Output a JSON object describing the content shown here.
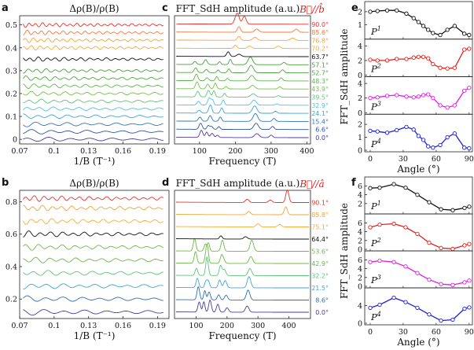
{
  "chart_data": {
    "type": "line",
    "layout": "composite figure of six panels (a-f)",
    "panel_a": {
      "label": "a",
      "title": "Δρ(B)/ρ(B)",
      "xlabel": "1/B (T⁻¹)",
      "xticks": [
        0.07,
        0.1,
        0.13,
        0.16,
        0.19
      ],
      "xtick_labels": [
        "0.07",
        "0.1",
        "0.13",
        "0.16",
        "0.19"
      ],
      "xlim": [
        0.07,
        0.2
      ],
      "yticks": [
        0,
        0.1,
        0.2,
        0.3,
        0.4,
        0.5
      ],
      "ytick_labels": [
        "0",
        "0.1",
        "0.2",
        "0.3",
        "0.4",
        "0.5"
      ],
      "ylim": [
        -0.02,
        0.54
      ],
      "offsets": [
        0.0,
        0.033,
        0.066,
        0.1,
        0.133,
        0.166,
        0.2,
        0.233,
        0.266,
        0.3,
        0.35,
        0.4,
        0.433,
        0.466,
        0.5
      ]
    },
    "panel_c": {
      "label": "c",
      "title": "FFT_SdH amplitude (a.u.)",
      "field_label": "B⃗//b̂",
      "xlabel": "Frequency (T)",
      "xticks": [
        100,
        200,
        300,
        400
      ],
      "xtick_labels": [
        "100",
        "200",
        "300",
        "400"
      ],
      "xlim": [
        30,
        410
      ],
      "angles": [
        "0.0°",
        "6.6°",
        "15.4°",
        "24.1°",
        "32.9°",
        "39.5°",
        "43.9°",
        "48.3°",
        "52.7°",
        "57.1°",
        "63.7°",
        "70.2°",
        "76.8°",
        "85.6°",
        "90.0°"
      ],
      "colors": [
        "#4c3a9e",
        "#2e55a5",
        "#2f78b8",
        "#3ea5d6",
        "#4fc3e2",
        "#5fc37a",
        "#73c246",
        "#5bb84a",
        "#4fa842",
        "#47a03c",
        "#111111",
        "#f4ac3a",
        "#f3a33b",
        "#f2793a",
        "#e8312c"
      ]
    },
    "panel_b": {
      "label": "b",
      "title": "Δρ(B)/ρ(B)",
      "xlabel": "1/B (T⁻¹)",
      "xticks": [
        0.07,
        0.1,
        0.13,
        0.16,
        0.19
      ],
      "xtick_labels": [
        "0.07",
        "0.1",
        "0.13",
        "0.16",
        "0.19"
      ],
      "xlim": [
        0.07,
        0.2
      ],
      "yticks": [
        0.2,
        0.4,
        0.6,
        0.8
      ],
      "ytick_labels": [
        "0.2",
        "0.4",
        "0.6",
        "0.8"
      ],
      "ylim": [
        0.08,
        0.87
      ],
      "offsets": [
        0.12,
        0.2,
        0.28,
        0.36,
        0.44,
        0.52,
        0.6,
        0.68,
        0.76,
        0.82
      ]
    },
    "panel_d": {
      "label": "d",
      "title": "FFT_SdH amplitude (a.u.)",
      "field_label": "B⃗//â",
      "xlabel": "Frequency (T)",
      "xticks": [
        100,
        200,
        300,
        400
      ],
      "xtick_labels": [
        "100",
        "200",
        "300",
        "400"
      ],
      "xlim": [
        30,
        470
      ],
      "angles": [
        "0.0°",
        "8.6°",
        "21.5°",
        "32.2°",
        "42.9°",
        "53.6°",
        "64.4°",
        "75.1°",
        "85.8°",
        "90.1°"
      ],
      "colors": [
        "#4c3a9e",
        "#2f6db2",
        "#3ea5d6",
        "#5fc37a",
        "#6cb846",
        "#6cb846",
        "#111111",
        "#f4ac3a",
        "#f2a33b",
        "#e8312c"
      ]
    },
    "panel_e": {
      "label": "e",
      "ylabel": "FFT_SdH amplitude",
      "xlabel": "Angle (°)",
      "xticks": [
        0,
        30,
        60,
        90
      ],
      "xtick_labels": [
        "0",
        "30",
        "60",
        "90"
      ],
      "series": [
        {
          "name": "P1",
          "color": "#111111",
          "ylim": [
            0,
            2.6
          ],
          "yticks": [
            1,
            2
          ],
          "ytick_labels": [
            "1",
            "2"
          ],
          "x": [
            0,
            6.6,
            15.4,
            24.1,
            32.9,
            39.5,
            43.9,
            48.3,
            52.7,
            57.1,
            63.7,
            70.2,
            76.8,
            85.6,
            90
          ],
          "values": [
            2.0,
            2.05,
            2.1,
            2.1,
            1.85,
            1.5,
            1.2,
            0.9,
            0.6,
            0.35,
            0.2,
            0.6,
            0.9,
            0.3,
            0.2
          ]
        },
        {
          "name": "P2",
          "color": "#e0201b",
          "ylim": [
            0,
            4.6
          ],
          "yticks": [
            0,
            2,
            4
          ],
          "ytick_labels": [
            "0",
            "2",
            "4"
          ],
          "x": [
            0,
            6.6,
            15.4,
            24.1,
            32.9,
            39.5,
            43.9,
            48.3,
            52.7,
            57.1,
            63.7,
            70.2,
            76.8,
            85.6,
            90
          ],
          "values": [
            2.1,
            2.0,
            2.0,
            2.2,
            2.2,
            2.4,
            2.5,
            2.5,
            2.3,
            1.5,
            1.0,
            0.9,
            1.0,
            3.5,
            3.6
          ]
        },
        {
          "name": "P3",
          "color": "#e01ee0",
          "ylim": [
            0,
            4.6
          ],
          "yticks": [
            0,
            2,
            4
          ],
          "ytick_labels": [
            "0",
            "2",
            "4"
          ],
          "x": [
            0,
            6.6,
            15.4,
            24.1,
            32.9,
            39.5,
            43.9,
            48.3,
            52.7,
            57.1,
            63.7,
            70.2,
            76.8,
            85.6,
            90
          ],
          "values": [
            2.0,
            2.1,
            2.3,
            2.4,
            2.2,
            2.1,
            2.2,
            2.4,
            2.5,
            2.0,
            1.0,
            0.7,
            1.0,
            3.0,
            3.4
          ]
        },
        {
          "name": "P4",
          "color": "#1f1fd6",
          "ylim": [
            0,
            2.6
          ],
          "yticks": [
            0,
            1,
            2
          ],
          "ytick_labels": [
            "0",
            "1",
            "2"
          ],
          "x": [
            0,
            6.6,
            15.4,
            24.1,
            32.9,
            39.5,
            43.9,
            48.3,
            52.7,
            57.1,
            63.7,
            70.2,
            76.8,
            85.6,
            90
          ],
          "values": [
            1.5,
            1.45,
            1.35,
            1.55,
            1.8,
            1.6,
            1.1,
            0.8,
            0.3,
            0.2,
            0.4,
            1.0,
            1.3,
            0.2,
            0.15
          ]
        }
      ]
    },
    "panel_f": {
      "label": "f",
      "ylabel": "FFT_SdH amplitude",
      "xlabel": "Angle (°)",
      "xticks": [
        0,
        30,
        60,
        90
      ],
      "xtick_labels": [
        "0",
        "30",
        "60",
        "90"
      ],
      "series": [
        {
          "name": "P1",
          "color": "#111111",
          "ylim": [
            0,
            7.5
          ],
          "yticks": [
            2,
            4,
            6
          ],
          "ytick_labels": [
            "2",
            "4",
            "6"
          ],
          "x": [
            0,
            8.6,
            21.5,
            32.2,
            42.9,
            53.6,
            64.4,
            75.1,
            85.8,
            90.1
          ],
          "values": [
            5.5,
            5.6,
            6.4,
            5.6,
            4.0,
            2.3,
            0.7,
            0.5,
            1.0,
            1.3
          ]
        },
        {
          "name": "P2",
          "color": "#e0201b",
          "ylim": [
            0,
            7.5
          ],
          "yticks": [
            0,
            2,
            4,
            6
          ],
          "ytick_labels": [
            "0",
            "2",
            "4",
            "6"
          ],
          "x": [
            0,
            8.6,
            21.5,
            32.2,
            42.9,
            53.6,
            64.4,
            75.1,
            85.8,
            90.1
          ],
          "values": [
            5.0,
            5.6,
            5.8,
            5.0,
            3.5,
            1.5,
            0.3,
            0.1,
            0.9,
            1.2
          ]
        },
        {
          "name": "P3",
          "color": "#e01ee0",
          "ylim": [
            0,
            7.5
          ],
          "yticks": [
            0,
            2,
            4,
            6
          ],
          "ytick_labels": [
            "0",
            "2",
            "4",
            "6"
          ],
          "x": [
            0,
            8.6,
            21.5,
            32.2,
            42.9,
            53.6,
            64.4,
            75.1,
            85.8,
            90.1
          ],
          "values": [
            5.5,
            5.8,
            5.5,
            4.5,
            3.0,
            1.5,
            0.5,
            0.3,
            0.9,
            1.3
          ]
        },
        {
          "name": "P4",
          "color": "#1f1fd6",
          "ylim": [
            0,
            7.5
          ],
          "yticks": [
            0,
            4
          ],
          "ytick_labels": [
            "0",
            "4"
          ],
          "x": [
            0,
            8.6,
            21.5,
            32.2,
            42.9,
            53.6,
            64.4,
            75.1,
            85.8,
            90.1
          ],
          "values": [
            3.5,
            4.2,
            5.8,
            4.8,
            3.5,
            2.0,
            0.6,
            0.8,
            3.3,
            3.6
          ]
        }
      ]
    }
  }
}
